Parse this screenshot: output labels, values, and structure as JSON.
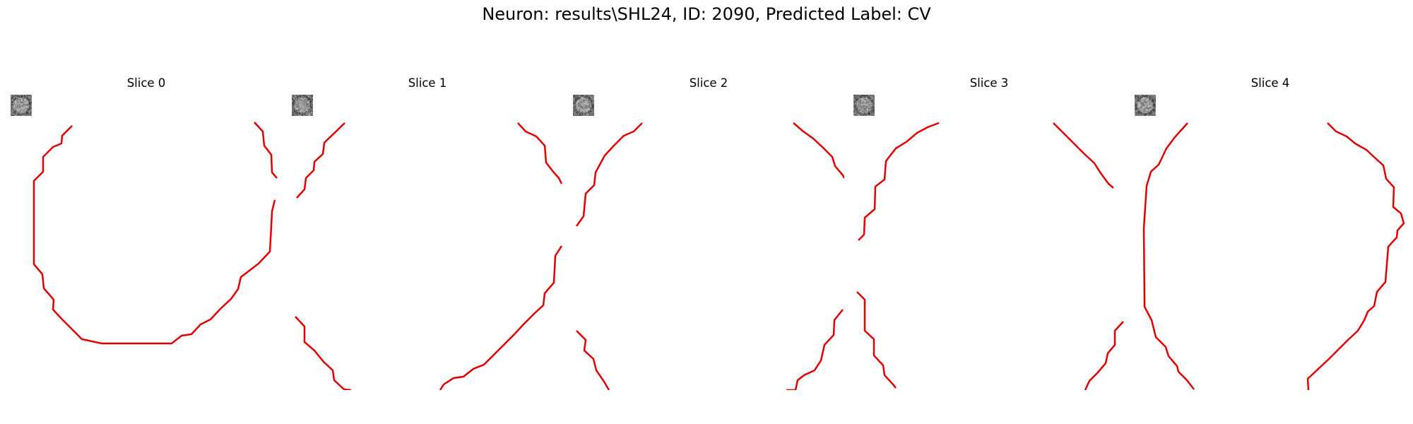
{
  "figure": {
    "title": "Neuron: results\\SHL24, ID: 2090, Predicted Label: CV"
  },
  "panels": [
    {
      "title": "Slice 0",
      "seed": 11,
      "contour_color": "#e00000"
    },
    {
      "title": "Slice 1",
      "seed": 23,
      "contour_color": "#e00000"
    },
    {
      "title": "Slice 2",
      "seed": 37,
      "contour_color": "#e00000"
    },
    {
      "title": "Slice 3",
      "seed": 53,
      "contour_color": "#e00000"
    },
    {
      "title": "Slice 4",
      "seed": 71,
      "contour_color": "#e00000"
    }
  ]
}
